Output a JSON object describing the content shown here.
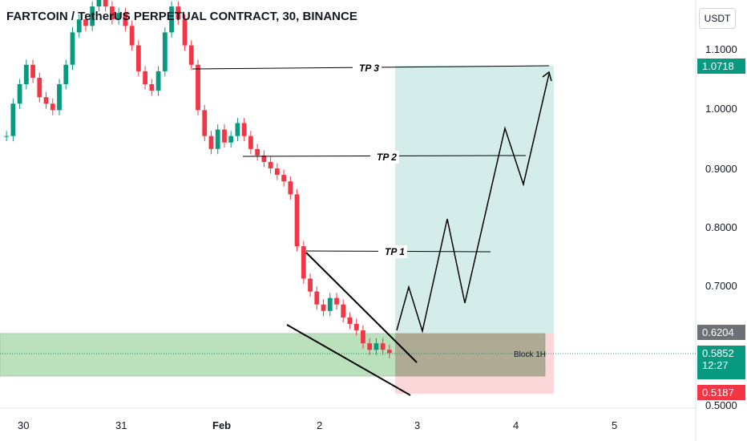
{
  "title": "FARTCOIN / TetherUS PERPETUAL CONTRACT, 30, BINANCE",
  "currency": "USDT",
  "chart_data": {
    "type": "candlestick-annotated",
    "y_axis": {
      "ticks": [
        "1.1000",
        "1.0000",
        "0.9000",
        "0.8000",
        "0.7000",
        "0.5000"
      ],
      "range": [
        0.5,
        1.13
      ]
    },
    "x_axis": {
      "ticks": [
        "30",
        "31",
        "Feb",
        "2",
        "3",
        "4",
        "5"
      ]
    },
    "price_tags": [
      {
        "value": "1.0718",
        "color": "#089981"
      },
      {
        "value": "0.6204",
        "color": "#6e7078"
      },
      {
        "value": "0.5852",
        "color": "#089981",
        "sub": "12:27"
      },
      {
        "value": "0.5187",
        "color": "#f23645"
      }
    ],
    "targets": [
      {
        "label": "TP 3",
        "price": 1.07
      },
      {
        "label": "TP 2",
        "price": 0.92
      },
      {
        "label": "TP 1",
        "price": 0.762
      }
    ],
    "zone_label": "Block 1H",
    "candles_close": [
      0.92,
      0.97,
      1.0,
      1.03,
      1.01,
      0.98,
      0.97,
      0.96,
      1.0,
      1.03,
      1.08,
      1.1,
      1.09,
      1.12,
      1.13,
      1.12,
      1.1,
      1.11,
      1.09,
      1.06,
      1.02,
      1.0,
      0.99,
      1.02,
      1.08,
      1.12,
      1.1,
      1.06,
      1.03,
      0.96,
      0.92,
      0.9,
      0.93,
      0.91,
      0.92,
      0.94,
      0.92,
      0.9,
      0.89,
      0.88,
      0.87,
      0.86,
      0.85,
      0.83,
      0.75,
      0.7,
      0.68,
      0.66,
      0.65,
      0.67,
      0.66,
      0.64,
      0.63,
      0.62,
      0.6,
      0.59,
      0.6,
      0.59,
      0.585
    ]
  }
}
